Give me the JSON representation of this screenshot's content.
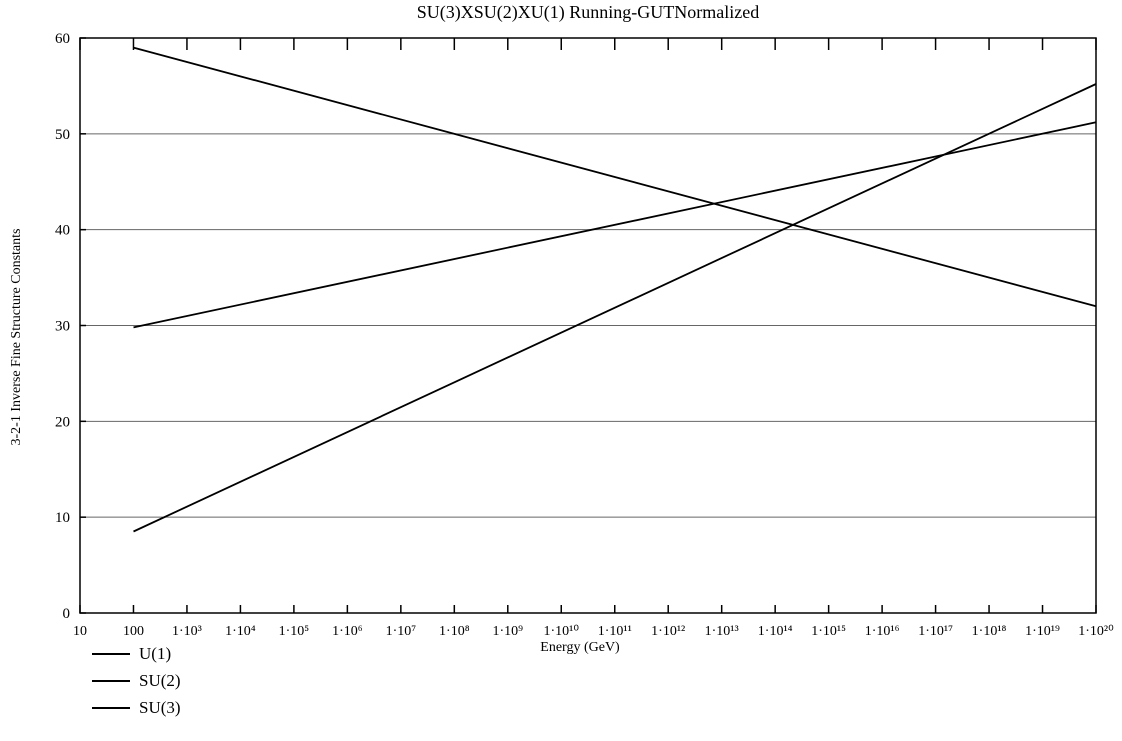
{
  "chart_data": {
    "type": "line",
    "title": "SU(3)XSU(2)XU(1) Running-GUTNormalized",
    "xlabel": "Energy (GeV)",
    "ylabel": "3-2-1 Inverse Fine Structure Constants",
    "x_scale": "log",
    "xlim": [
      10,
      1e+20
    ],
    "ylim": [
      0,
      60
    ],
    "x_tick_labels": [
      "10",
      "100",
      "1·10³",
      "1·10⁴",
      "1·10⁵",
      "1·10⁶",
      "1·10⁷",
      "1·10⁸",
      "1·10⁹",
      "1·10¹⁰",
      "1·10¹¹",
      "1·10¹²",
      "1·10¹³",
      "1·10¹⁴",
      "1·10¹⁵",
      "1·10¹⁶",
      "1·10¹⁷",
      "1·10¹⁸",
      "1·10¹⁹",
      "1·10²⁰"
    ],
    "y_ticks": [
      0,
      10,
      20,
      30,
      40,
      50,
      60
    ],
    "grid": "horizontal",
    "legend_position": "bottom-left",
    "x": [
      100,
      1e+20
    ],
    "series": [
      {
        "name": "U(1)",
        "values": [
          59.0,
          32.0
        ]
      },
      {
        "name": "SU(2)",
        "values": [
          29.8,
          51.2
        ]
      },
      {
        "name": "SU(3)",
        "values": [
          8.5,
          55.2
        ]
      }
    ]
  },
  "colors": {
    "line": "#000000",
    "grid": "#666666"
  }
}
